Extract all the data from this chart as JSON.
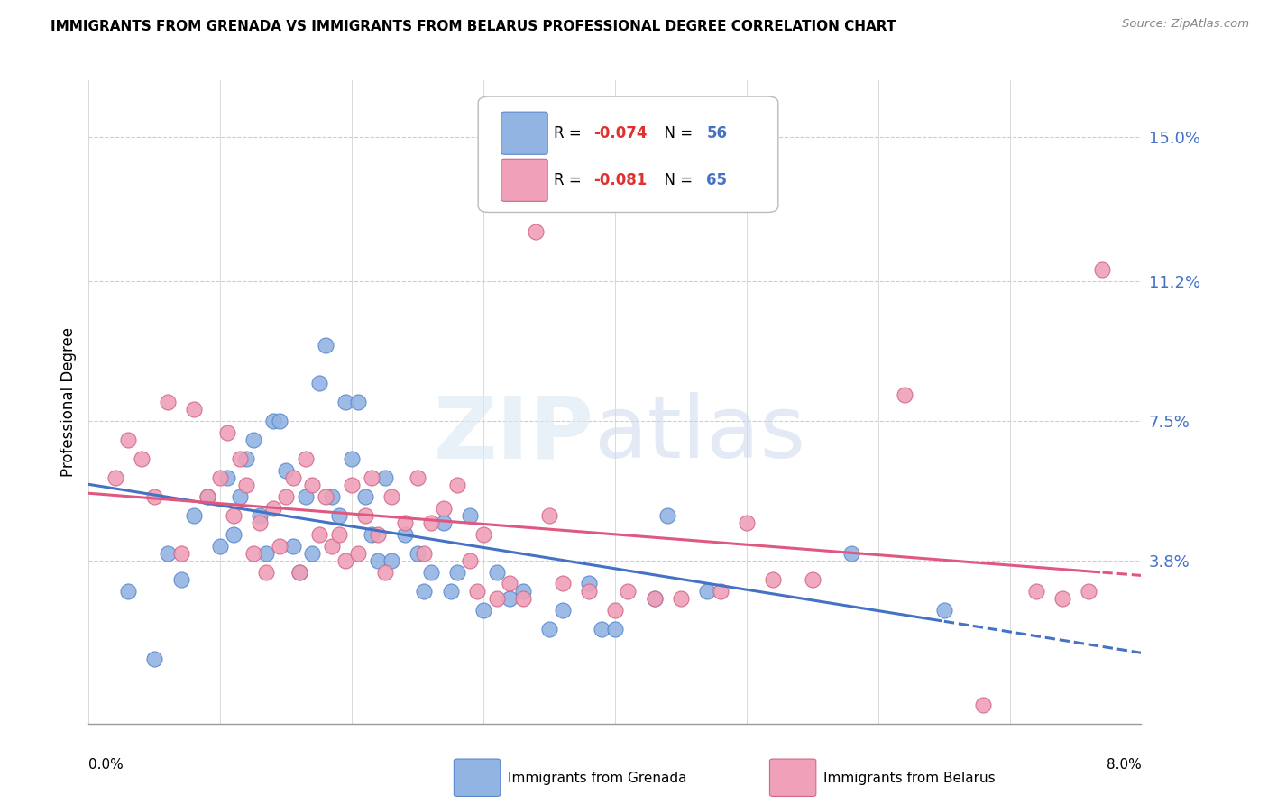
{
  "title": "IMMIGRANTS FROM GRENADA VS IMMIGRANTS FROM BELARUS PROFESSIONAL DEGREE CORRELATION CHART",
  "source": "Source: ZipAtlas.com",
  "ylabel": "Professional Degree",
  "ytick_labels": [
    "15.0%",
    "11.2%",
    "7.5%",
    "3.8%"
  ],
  "ytick_values": [
    15.0,
    11.2,
    7.5,
    3.8
  ],
  "xmin": 0.0,
  "xmax": 8.0,
  "ymin": -0.5,
  "ymax": 16.5,
  "xtick_positions": [
    0.0,
    1.0,
    2.0,
    3.0,
    4.0,
    5.0,
    6.0,
    7.0,
    8.0
  ],
  "color_grenada": "#92b4e3",
  "color_belarus": "#f0a0b8",
  "color_grenada_edge": "#5a88cc",
  "color_belarus_edge": "#d06888",
  "trendline_grenada_color": "#4472c4",
  "trendline_belarus_color": "#e05880",
  "grenada_x": [
    0.3,
    0.5,
    0.6,
    0.7,
    0.8,
    0.9,
    1.0,
    1.05,
    1.1,
    1.15,
    1.2,
    1.25,
    1.3,
    1.35,
    1.4,
    1.45,
    1.5,
    1.55,
    1.6,
    1.65,
    1.7,
    1.75,
    1.8,
    1.85,
    1.9,
    1.95,
    2.0,
    2.05,
    2.1,
    2.15,
    2.2,
    2.25,
    2.3,
    2.4,
    2.5,
    2.55,
    2.6,
    2.7,
    2.75,
    2.8,
    2.9,
    3.0,
    3.1,
    3.2,
    3.3,
    3.5,
    3.6,
    3.8,
    3.9,
    4.0,
    4.3,
    4.4,
    4.7,
    5.8,
    6.5
  ],
  "grenada_y": [
    3.0,
    1.2,
    4.0,
    3.3,
    5.0,
    5.5,
    4.2,
    6.0,
    4.5,
    5.5,
    6.5,
    7.0,
    5.0,
    4.0,
    7.5,
    7.5,
    6.2,
    4.2,
    3.5,
    5.5,
    4.0,
    8.5,
    9.5,
    5.5,
    5.0,
    8.0,
    6.5,
    8.0,
    5.5,
    4.5,
    3.8,
    6.0,
    3.8,
    4.5,
    4.0,
    3.0,
    3.5,
    4.8,
    3.0,
    3.5,
    5.0,
    2.5,
    3.5,
    2.8,
    3.0,
    2.0,
    2.5,
    3.2,
    2.0,
    2.0,
    2.8,
    5.0,
    3.0,
    4.0,
    2.5
  ],
  "belarus_x": [
    0.2,
    0.3,
    0.4,
    0.5,
    0.6,
    0.7,
    0.8,
    0.9,
    1.0,
    1.05,
    1.1,
    1.15,
    1.2,
    1.25,
    1.3,
    1.35,
    1.4,
    1.45,
    1.5,
    1.55,
    1.6,
    1.65,
    1.7,
    1.75,
    1.8,
    1.85,
    1.9,
    1.95,
    2.0,
    2.05,
    2.1,
    2.15,
    2.2,
    2.25,
    2.3,
    2.4,
    2.5,
    2.55,
    2.6,
    2.7,
    2.8,
    2.9,
    2.95,
    3.0,
    3.1,
    3.2,
    3.3,
    3.4,
    3.5,
    3.6,
    3.8,
    4.0,
    4.1,
    4.3,
    4.5,
    4.8,
    5.0,
    5.2,
    5.5,
    6.2,
    6.8,
    7.2,
    7.4,
    7.6,
    7.7
  ],
  "belarus_y": [
    6.0,
    7.0,
    6.5,
    5.5,
    8.0,
    4.0,
    7.8,
    5.5,
    6.0,
    7.2,
    5.0,
    6.5,
    5.8,
    4.0,
    4.8,
    3.5,
    5.2,
    4.2,
    5.5,
    6.0,
    3.5,
    6.5,
    5.8,
    4.5,
    5.5,
    4.2,
    4.5,
    3.8,
    5.8,
    4.0,
    5.0,
    6.0,
    4.5,
    3.5,
    5.5,
    4.8,
    6.0,
    4.0,
    4.8,
    5.2,
    5.8,
    3.8,
    3.0,
    4.5,
    2.8,
    3.2,
    2.8,
    12.5,
    5.0,
    3.2,
    3.0,
    2.5,
    3.0,
    2.8,
    2.8,
    3.0,
    4.8,
    3.3,
    3.3,
    8.2,
    0.0,
    3.0,
    2.8,
    3.0,
    11.5
  ]
}
